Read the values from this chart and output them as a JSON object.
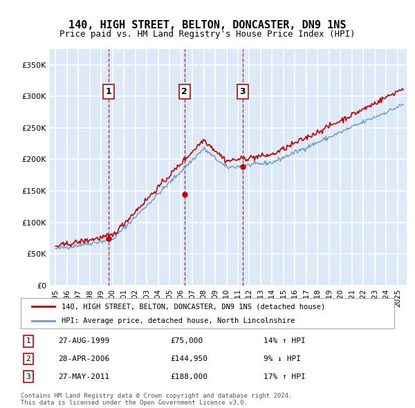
{
  "title": "140, HIGH STREET, BELTON, DONCASTER, DN9 1NS",
  "subtitle": "Price paid vs. HM Land Registry's House Price Index (HPI)",
  "legend_line1": "140, HIGH STREET, BELTON, DONCASTER, DN9 1NS (detached house)",
  "legend_line2": "HPI: Average price, detached house, North Lincolnshire",
  "transactions": [
    {
      "num": 1,
      "date": "27-AUG-1999",
      "price": 75000,
      "hpi_pct": "14%",
      "hpi_dir": "↑"
    },
    {
      "num": 2,
      "date": "28-APR-2006",
      "price": 144950,
      "hpi_pct": "9%",
      "hpi_dir": "↓"
    },
    {
      "num": 3,
      "date": "27-MAY-2011",
      "price": 188000,
      "hpi_pct": "17%",
      "hpi_dir": "↑"
    }
  ],
  "transaction_years": [
    1999.65,
    2006.32,
    2011.4
  ],
  "transaction_prices": [
    75000,
    144950,
    188000
  ],
  "footer": "Contains HM Land Registry data © Crown copyright and database right 2024.\nThis data is licensed under the Open Government Licence v3.0.",
  "ylim": [
    0,
    375000
  ],
  "yticks": [
    0,
    50000,
    100000,
    150000,
    200000,
    250000,
    300000,
    350000
  ],
  "ytick_labels": [
    "£0",
    "£50K",
    "£100K",
    "£150K",
    "£200K",
    "£250K",
    "£300K",
    "£350K"
  ],
  "bg_color": "#dce9f8",
  "grid_color": "#ffffff",
  "red_line_color": "#cc0000",
  "blue_line_color": "#6699cc",
  "dashed_line_color": "#cc0000",
  "n_points": 366
}
